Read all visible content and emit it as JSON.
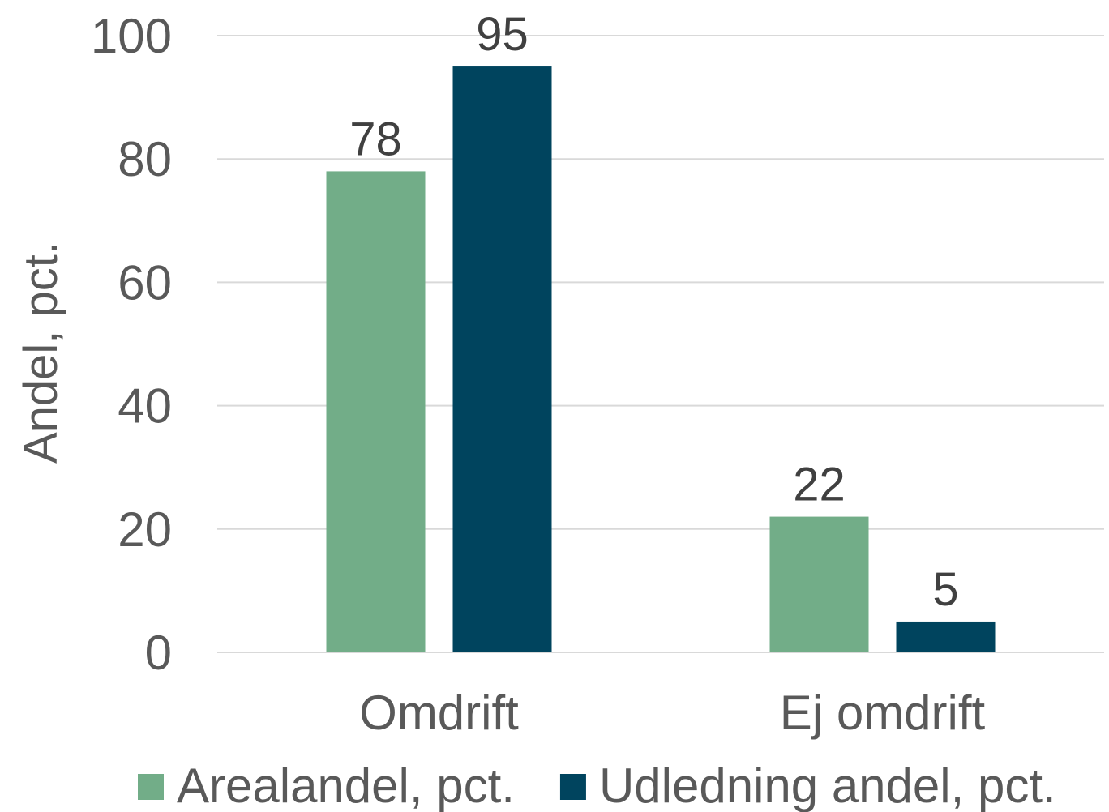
{
  "chart_data": {
    "type": "bar",
    "y_label": "Andel, pct.",
    "categories": [
      "Omdrift",
      "Ej omdrift"
    ],
    "series": [
      {
        "name": "Arealandel, pct.",
        "color": "#72ad88",
        "values": [
          78,
          22
        ]
      },
      {
        "name": "Udledning andel, pct.",
        "color": "#00445e",
        "values": [
          95,
          5
        ]
      }
    ],
    "ylim": [
      0,
      100
    ],
    "yticks": [
      0,
      20,
      40,
      60,
      80,
      100
    ],
    "grid": true,
    "legend": "bottom"
  }
}
